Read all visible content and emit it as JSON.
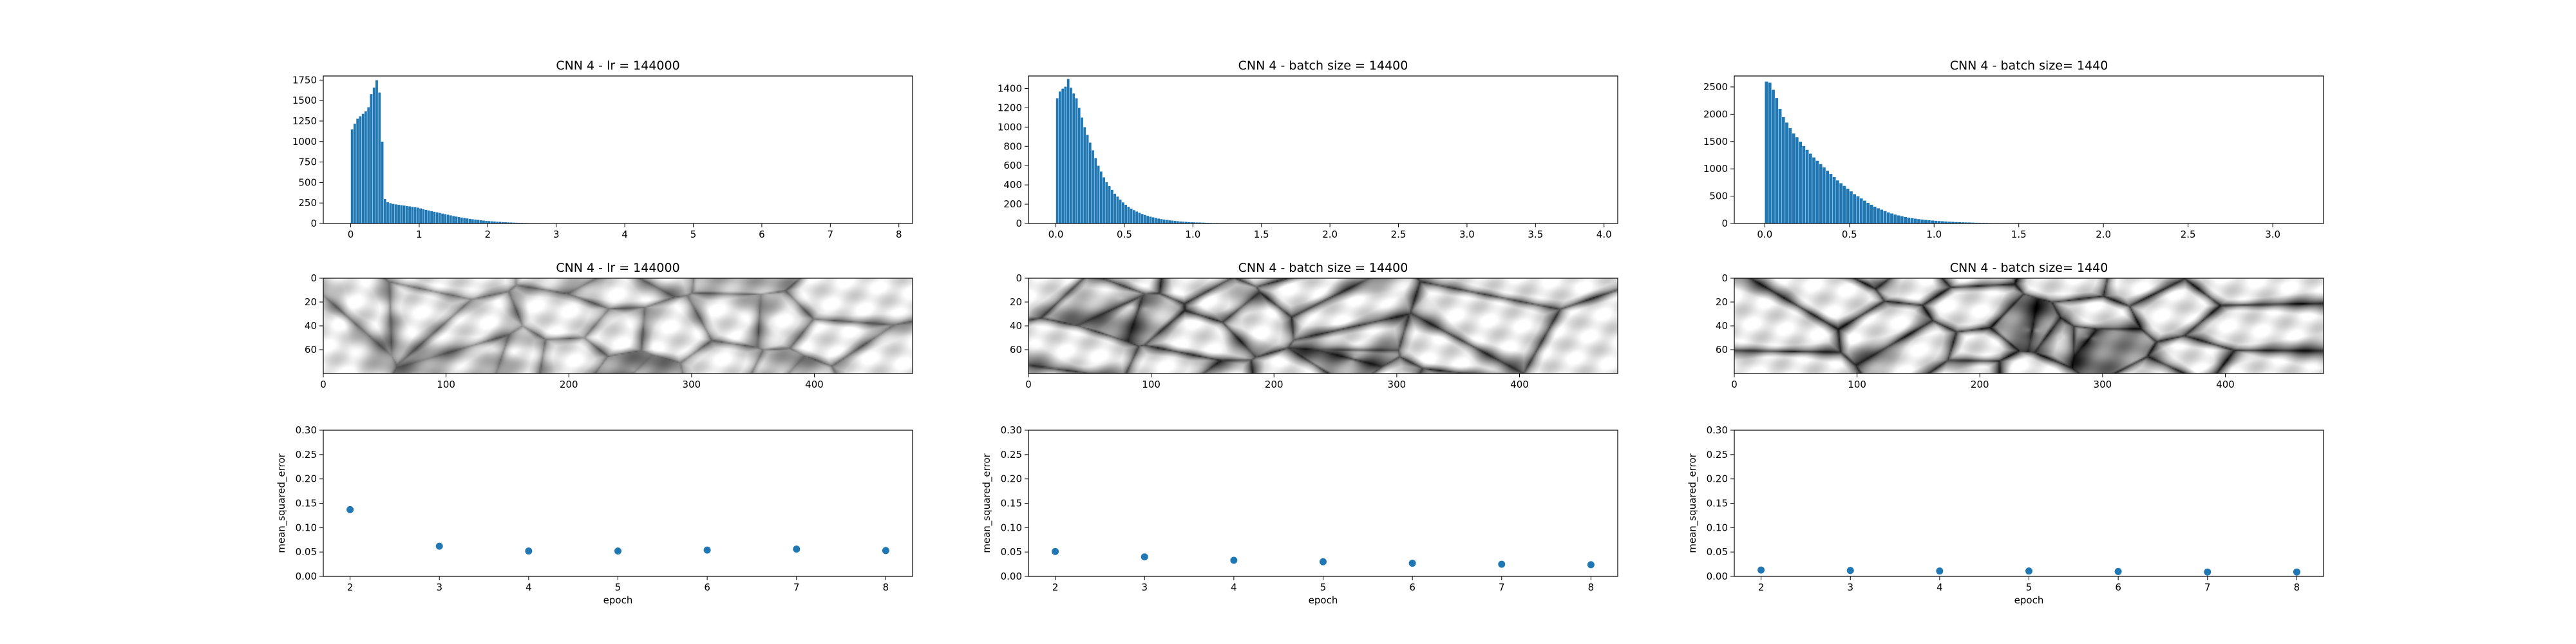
{
  "figure": {
    "background": "#ffffff",
    "bar_color": "#1f77b4",
    "point_color": "#1f77b4"
  },
  "chart_data": [
    {
      "type": "bar",
      "title": "CNN 4 - lr = 144000",
      "xlim": [
        -0.4,
        8.2
      ],
      "ylim": [
        0,
        1800
      ],
      "xticks": [
        "0",
        "1",
        "2",
        "3",
        "4",
        "5",
        "6",
        "7",
        "8"
      ],
      "yticks": [
        "0",
        "250",
        "500",
        "750",
        "1000",
        "1250",
        "1500",
        "1750"
      ],
      "bin_width": 0.04,
      "bins": [
        0.02,
        0.06,
        0.1,
        0.14,
        0.18,
        0.22,
        0.26,
        0.3,
        0.34,
        0.38,
        0.42,
        0.46,
        0.5,
        0.54,
        0.58,
        0.62,
        0.66,
        0.7,
        0.74,
        0.78,
        0.82,
        0.86,
        0.9,
        0.94,
        0.98,
        1.02,
        1.06,
        1.1,
        1.14,
        1.18,
        1.22,
        1.26,
        1.3,
        1.34,
        1.38,
        1.42,
        1.46,
        1.5,
        1.54,
        1.58,
        1.62,
        1.66,
        1.7,
        1.74,
        1.78,
        1.82,
        1.86,
        1.9,
        1.94,
        1.98,
        2.02,
        2.06,
        2.1,
        2.14,
        2.18,
        2.22,
        2.26,
        2.3,
        2.34,
        2.38,
        2.42,
        2.46,
        2.5,
        2.54,
        2.58,
        2.62,
        2.66,
        2.7,
        2.74,
        2.78,
        2.82,
        2.86,
        2.9,
        2.94,
        2.98,
        3.02,
        3.06,
        3.1
      ],
      "values": [
        1150,
        1220,
        1280,
        1310,
        1340,
        1370,
        1420,
        1580,
        1660,
        1750,
        1600,
        1000,
        300,
        260,
        250,
        240,
        235,
        230,
        225,
        220,
        215,
        210,
        205,
        200,
        195,
        185,
        175,
        168,
        160,
        152,
        145,
        138,
        130,
        122,
        115,
        108,
        100,
        93,
        86,
        80,
        74,
        68,
        63,
        58,
        53,
        49,
        45,
        41,
        37,
        34,
        31,
        28,
        25,
        23,
        21,
        19,
        17,
        15,
        13,
        12,
        11,
        10,
        9,
        8,
        7,
        6,
        6,
        5,
        5,
        4,
        4,
        3,
        3,
        3,
        2,
        2,
        2,
        2
      ]
    },
    {
      "type": "bar",
      "title": "CNN 4 - batch size = 14400",
      "xlim": [
        -0.2,
        4.1
      ],
      "ylim": [
        0,
        1530
      ],
      "xticks": [
        "0.0",
        "0.5",
        "1.0",
        "1.5",
        "2.0",
        "2.5",
        "3.0",
        "3.5",
        "4.0"
      ],
      "yticks": [
        "0",
        "200",
        "400",
        "600",
        "800",
        "1000",
        "1200",
        "1400"
      ],
      "bin_width": 0.02,
      "bins": [
        0.01,
        0.03,
        0.05,
        0.07,
        0.09,
        0.11,
        0.13,
        0.15,
        0.17,
        0.19,
        0.21,
        0.23,
        0.25,
        0.27,
        0.29,
        0.31,
        0.33,
        0.35,
        0.37,
        0.39,
        0.41,
        0.43,
        0.45,
        0.47,
        0.49,
        0.51,
        0.53,
        0.55,
        0.57,
        0.59,
        0.61,
        0.63,
        0.65,
        0.67,
        0.69,
        0.71,
        0.73,
        0.75,
        0.77,
        0.79,
        0.81,
        0.83,
        0.85,
        0.87,
        0.89,
        0.91,
        0.93,
        0.95,
        0.97,
        0.99,
        1.01,
        1.03,
        1.05,
        1.07,
        1.09,
        1.11,
        1.13,
        1.15,
        1.17,
        1.19,
        1.21,
        1.23,
        1.25,
        1.27,
        1.29,
        1.31,
        1.33,
        1.35,
        1.37,
        1.39,
        1.41,
        1.43,
        1.45,
        1.47,
        1.49,
        1.51,
        1.53,
        1.55,
        1.57,
        1.59
      ],
      "values": [
        1300,
        1370,
        1400,
        1420,
        1500,
        1410,
        1350,
        1300,
        1200,
        1100,
        1000,
        920,
        840,
        760,
        680,
        600,
        540,
        480,
        430,
        390,
        350,
        310,
        280,
        250,
        220,
        195,
        175,
        155,
        140,
        125,
        112,
        100,
        90,
        80,
        72,
        65,
        58,
        52,
        47,
        42,
        38,
        34,
        31,
        28,
        25,
        22,
        20,
        18,
        16,
        14,
        13,
        12,
        11,
        10,
        9,
        8,
        7,
        6,
        6,
        5,
        5,
        4,
        4,
        3,
        3,
        3,
        2,
        2,
        2,
        2,
        1,
        1,
        1,
        1,
        1,
        1,
        1,
        1,
        1,
        1
      ]
    },
    {
      "type": "bar",
      "title": "CNN 4 - batch size= 1440",
      "xlim": [
        -0.18,
        3.3
      ],
      "ylim": [
        0,
        2700
      ],
      "xticks": [
        "0.0",
        "0.5",
        "1.0",
        "1.5",
        "2.0",
        "2.5",
        "3.0"
      ],
      "yticks": [
        "0",
        "500",
        "1000",
        "1500",
        "2000",
        "2500"
      ],
      "bin_width": 0.02,
      "bins": [
        0.01,
        0.03,
        0.05,
        0.07,
        0.09,
        0.11,
        0.13,
        0.15,
        0.17,
        0.19,
        0.21,
        0.23,
        0.25,
        0.27,
        0.29,
        0.31,
        0.33,
        0.35,
        0.37,
        0.39,
        0.41,
        0.43,
        0.45,
        0.47,
        0.49,
        0.51,
        0.53,
        0.55,
        0.57,
        0.59,
        0.61,
        0.63,
        0.65,
        0.67,
        0.69,
        0.71,
        0.73,
        0.75,
        0.77,
        0.79,
        0.81,
        0.83,
        0.85,
        0.87,
        0.89,
        0.91,
        0.93,
        0.95,
        0.97,
        0.99,
        1.01,
        1.03,
        1.05,
        1.07,
        1.09,
        1.11,
        1.13,
        1.15,
        1.17,
        1.19,
        1.21,
        1.23,
        1.25,
        1.27,
        1.29,
        1.31,
        1.33,
        1.35,
        1.37,
        1.39,
        1.41,
        1.43,
        1.45,
        1.47,
        1.49,
        1.51,
        1.53,
        1.55,
        1.57,
        1.59
      ],
      "values": [
        2600,
        2580,
        2450,
        2300,
        2100,
        1950,
        1850,
        1750,
        1650,
        1580,
        1500,
        1420,
        1350,
        1280,
        1210,
        1150,
        1090,
        1030,
        970,
        910,
        850,
        790,
        740,
        690,
        640,
        590,
        540,
        500,
        460,
        420,
        380,
        345,
        310,
        280,
        255,
        230,
        205,
        185,
        165,
        150,
        135,
        122,
        110,
        100,
        90,
        82,
        75,
        68,
        62,
        57,
        52,
        47,
        43,
        39,
        35,
        32,
        29,
        26,
        24,
        22,
        20,
        18,
        16,
        15,
        13,
        12,
        11,
        10,
        9,
        8,
        7,
        6,
        6,
        5,
        5,
        4,
        4,
        3,
        3,
        3
      ]
    },
    {
      "type": "heatmap",
      "title": "CNN 4 - lr = 144000",
      "xlim": [
        0,
        480
      ],
      "ylim": [
        80,
        0
      ],
      "xticks": [
        "0",
        "100",
        "200",
        "300",
        "400"
      ],
      "yticks": [
        "0",
        "20",
        "40",
        "60"
      ],
      "colormap": "gray",
      "contrast": 0.65,
      "seed": 3
    },
    {
      "type": "heatmap",
      "title": "CNN 4 - batch size = 14400",
      "xlim": [
        0,
        480
      ],
      "ylim": [
        80,
        0
      ],
      "xticks": [
        "0",
        "100",
        "200",
        "300",
        "400"
      ],
      "yticks": [
        "0",
        "20",
        "40",
        "60"
      ],
      "colormap": "gray",
      "contrast": 0.9,
      "seed": 7
    },
    {
      "type": "heatmap",
      "title": "CNN 4 - batch size= 1440",
      "xlim": [
        0,
        480
      ],
      "ylim": [
        80,
        0
      ],
      "xticks": [
        "0",
        "100",
        "200",
        "300",
        "400"
      ],
      "yticks": [
        "0",
        "20",
        "40",
        "60"
      ],
      "colormap": "gray",
      "contrast": 1.0,
      "seed": 11
    },
    {
      "type": "scatter",
      "xlabel": "epoch",
      "ylabel": "mean_squared_error",
      "xlim": [
        1.7,
        8.3
      ],
      "ylim": [
        0,
        0.3
      ],
      "xticks": [
        "2",
        "3",
        "4",
        "5",
        "6",
        "7",
        "8"
      ],
      "yticks": [
        "0.00",
        "0.05",
        "0.10",
        "0.15",
        "0.20",
        "0.25",
        "0.30"
      ],
      "x": [
        2,
        3,
        4,
        5,
        6,
        7,
        8
      ],
      "y": [
        0.137,
        0.062,
        0.052,
        0.052,
        0.054,
        0.056,
        0.053
      ]
    },
    {
      "type": "scatter",
      "xlabel": "epoch",
      "ylabel": "mean_squared_error",
      "xlim": [
        1.7,
        8.3
      ],
      "ylim": [
        0,
        0.3
      ],
      "xticks": [
        "2",
        "3",
        "4",
        "5",
        "6",
        "7",
        "8"
      ],
      "yticks": [
        "0.00",
        "0.05",
        "0.10",
        "0.15",
        "0.20",
        "0.25",
        "0.30"
      ],
      "x": [
        2,
        3,
        4,
        5,
        6,
        7,
        8
      ],
      "y": [
        0.051,
        0.04,
        0.033,
        0.03,
        0.027,
        0.025,
        0.024
      ]
    },
    {
      "type": "scatter",
      "xlabel": "epoch",
      "ylabel": "mean_squared_error",
      "xlim": [
        1.7,
        8.3
      ],
      "ylim": [
        0,
        0.3
      ],
      "xticks": [
        "2",
        "3",
        "4",
        "5",
        "6",
        "7",
        "8"
      ],
      "yticks": [
        "0.00",
        "0.05",
        "0.10",
        "0.15",
        "0.20",
        "0.25",
        "0.30"
      ],
      "x": [
        2,
        3,
        4,
        5,
        6,
        7,
        8
      ],
      "y": [
        0.013,
        0.012,
        0.011,
        0.011,
        0.01,
        0.009,
        0.009
      ]
    }
  ]
}
